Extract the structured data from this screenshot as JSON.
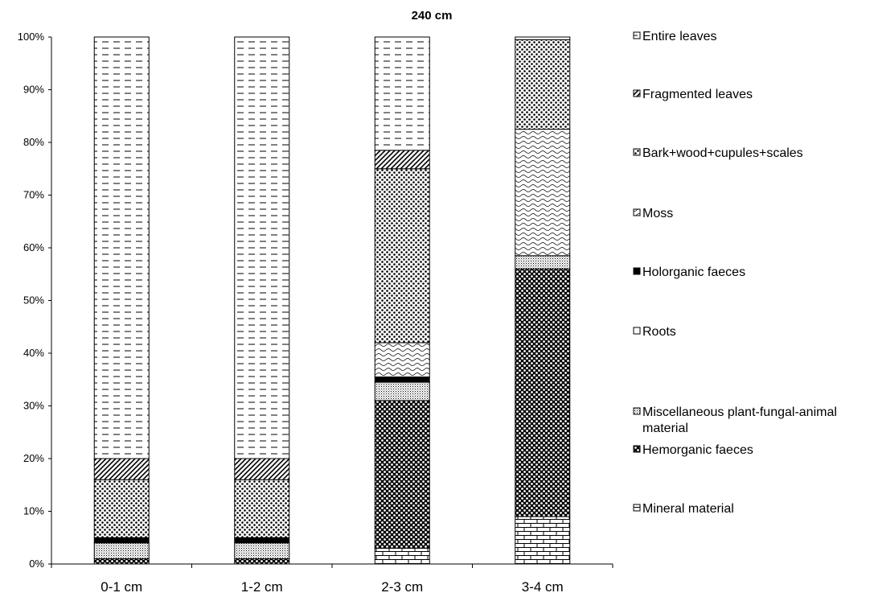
{
  "chart_data": {
    "type": "bar",
    "stacked": "percent",
    "title": "240 cm",
    "categories": [
      "0-1 cm",
      "1-2 cm",
      "2-3 cm",
      "3-4 cm"
    ],
    "y_ticks": [
      "0%",
      "10%",
      "20%",
      "30%",
      "40%",
      "50%",
      "60%",
      "70%",
      "80%",
      "90%",
      "100%"
    ],
    "ylim": [
      0,
      100
    ],
    "legend_position": "right",
    "series": [
      {
        "name": "Mineral material",
        "pattern": "brick",
        "values": [
          0,
          0,
          3,
          9
        ]
      },
      {
        "name": "Hemorganic faeces",
        "pattern": "dense-dots",
        "values": [
          1,
          1,
          28,
          47
        ]
      },
      {
        "name": "Miscellaneous plant-fungal-animal material",
        "pattern": "fine-dots",
        "values": [
          3,
          3,
          3.5,
          2.5
        ]
      },
      {
        "name": "Roots",
        "pattern": "none",
        "values": [
          0,
          0,
          0,
          0
        ]
      },
      {
        "name": "Holorganic faeces",
        "pattern": "solid",
        "values": [
          1,
          1,
          1,
          0
        ]
      },
      {
        "name": "Moss",
        "pattern": "wave",
        "values": [
          0,
          0,
          6.5,
          24
        ]
      },
      {
        "name": "Bark+wood+cupules+scales",
        "pattern": "dots",
        "values": [
          11,
          11,
          33,
          17
        ]
      },
      {
        "name": "Fragmented leaves",
        "pattern": "diagonal",
        "values": [
          4,
          4,
          3.5,
          0
        ]
      },
      {
        "name": "Entire leaves",
        "pattern": "dashes",
        "values": [
          80,
          80,
          21.5,
          0.5
        ]
      }
    ],
    "legend_order": [
      "Entire leaves",
      "Fragmented leaves",
      "Bark+wood+cupules+scales",
      "Moss",
      "Holorganic faeces",
      "Roots",
      "Miscellaneous plant-fungal-animal material",
      "Hemorganic faeces",
      "Mineral material"
    ]
  }
}
